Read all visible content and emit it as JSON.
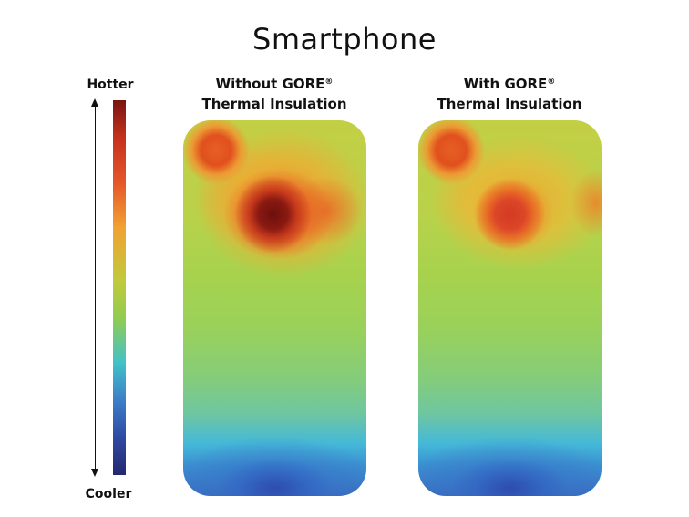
{
  "title": "Smartphone",
  "scale": {
    "top_label": "Hotter",
    "bottom_label": "Cooler"
  },
  "phones": [
    {
      "heading_line1": "Without GORE",
      "heading_reg": "®",
      "heading_line2": "Thermal Insulation"
    },
    {
      "heading_line1": "With GORE",
      "heading_reg": "®",
      "heading_line2": "Thermal Insulation"
    }
  ],
  "colors": {
    "hottest": "#7a1410",
    "hot": "#e6562a",
    "warm": "#f0a234",
    "neutral": "#92cc4f",
    "cool": "#42c2c8",
    "coolest": "#23286e"
  }
}
